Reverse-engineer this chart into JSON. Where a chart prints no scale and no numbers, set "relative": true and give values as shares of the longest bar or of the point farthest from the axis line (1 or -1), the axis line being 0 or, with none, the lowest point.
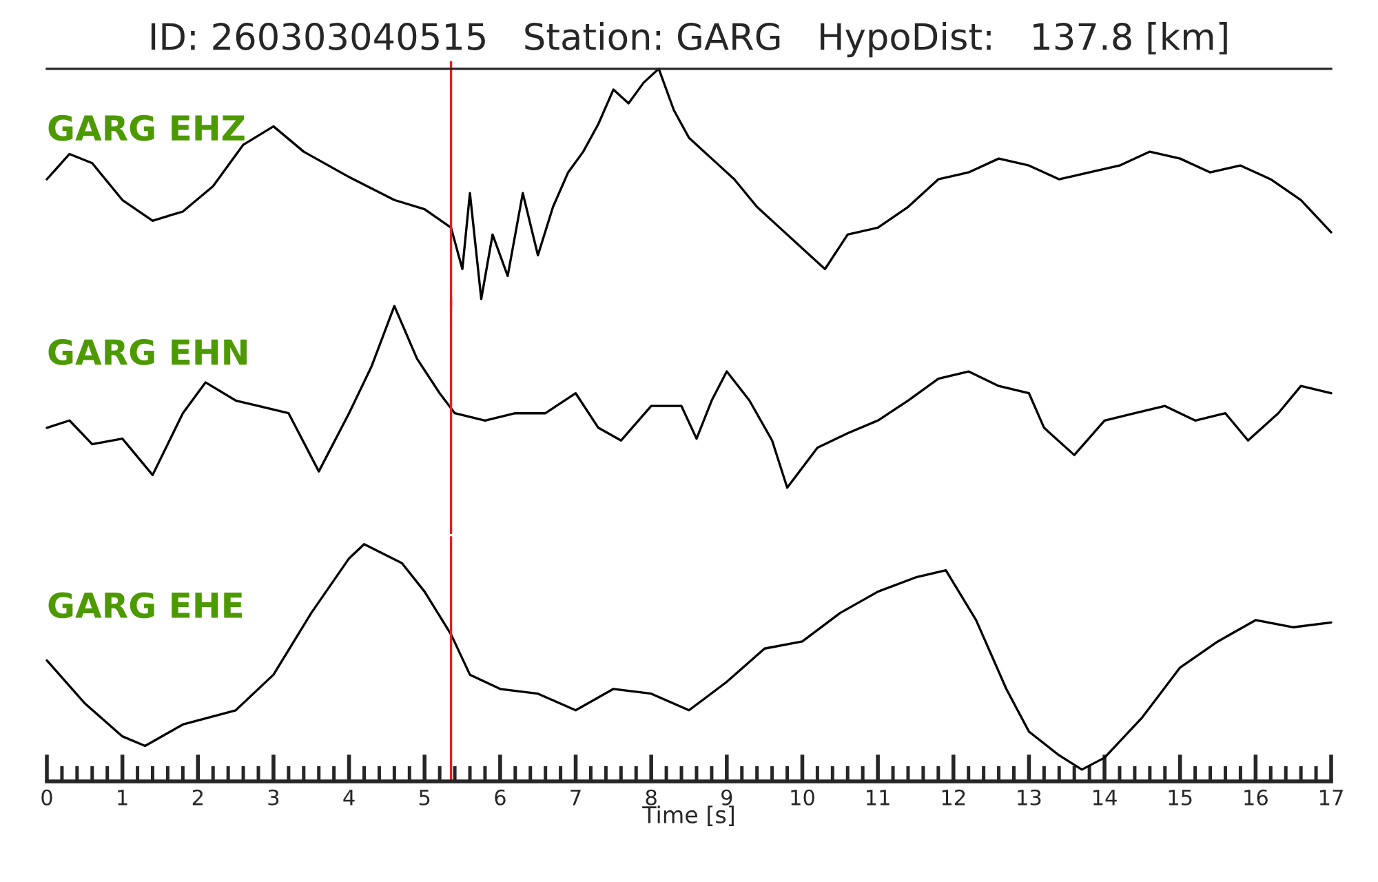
{
  "chart_data": [
    {
      "type": "line",
      "title": "ID: 260303040515   Station: GARG   HypoDist:   137.8 [km]",
      "relative": true,
      "xlim": [
        0,
        17
      ],
      "tick_labels": false,
      "x": [
        0,
        0.3,
        0.6,
        1.0,
        1.4,
        1.8,
        2.2,
        2.6,
        3.0,
        3.4,
        4.0,
        4.6,
        5.0,
        5.35,
        5.5,
        5.6,
        5.75,
        5.9,
        6.1,
        6.3,
        6.5,
        6.7,
        6.9,
        7.1,
        7.3,
        7.5,
        7.7,
        7.9,
        8.1,
        8.3,
        8.5,
        8.8,
        9.1,
        9.4,
        9.7,
        10.0,
        10.3,
        10.6,
        11.0,
        11.4,
        11.8,
        12.2,
        12.6,
        13.0,
        13.4,
        13.8,
        14.2,
        14.6,
        15.0,
        15.4,
        15.8,
        16.2,
        16.6,
        17.0
      ],
      "series": [
        {
          "name": "GARG EHZ",
          "color": "#000000",
          "values": [
            0.52,
            0.63,
            0.59,
            0.43,
            0.34,
            0.38,
            0.49,
            0.67,
            0.75,
            0.64,
            0.53,
            0.43,
            0.39,
            0.31,
            0.13,
            0.46,
            0,
            0.28,
            0.1,
            0.46,
            0.19,
            0.4,
            0.55,
            0.64,
            0.76,
            0.91,
            0.85,
            0.94,
            1,
            0.82,
            0.7,
            0.61,
            0.52,
            0.4,
            0.31,
            0.22,
            0.13,
            0.28,
            0.31,
            0.4,
            0.52,
            0.55,
            0.61,
            0.58,
            0.52,
            0.55,
            0.58,
            0.64,
            0.61,
            0.55,
            0.58,
            0.52,
            0.43,
            0.29
          ]
        }
      ],
      "ref_lines": [
        {
          "axis": "x",
          "value": 5.35,
          "color": "#e0201f"
        }
      ]
    },
    {
      "type": "line",
      "relative": true,
      "xlim": [
        0,
        17
      ],
      "tick_labels": false,
      "x": [
        0,
        0.3,
        0.6,
        1.0,
        1.4,
        1.8,
        2.1,
        2.5,
        2.8,
        3.2,
        3.6,
        4.0,
        4.3,
        4.6,
        4.9,
        5.2,
        5.4,
        5.8,
        6.2,
        6.6,
        7.0,
        7.3,
        7.6,
        8.0,
        8.4,
        8.6,
        8.8,
        9.0,
        9.3,
        9.6,
        9.8,
        10.2,
        10.6,
        11.0,
        11.4,
        11.8,
        12.2,
        12.6,
        13.0,
        13.2,
        13.6,
        14.0,
        14.4,
        14.8,
        15.2,
        15.6,
        15.9,
        16.3,
        16.6,
        17.0
      ],
      "series": [
        {
          "name": "GARG EHN",
          "color": "#000000",
          "values": [
            0.33,
            0.37,
            0.24,
            0.27,
            0.07,
            0.41,
            0.58,
            0.48,
            0.45,
            0.41,
            0.09,
            0.41,
            0.67,
            1,
            0.71,
            0.52,
            0.41,
            0.37,
            0.41,
            0.41,
            0.52,
            0.33,
            0.26,
            0.45,
            0.45,
            0.27,
            0.48,
            0.64,
            0.48,
            0.26,
            0,
            0.22,
            0.3,
            0.37,
            0.48,
            0.6,
            0.64,
            0.56,
            0.52,
            0.33,
            0.18,
            0.37,
            0.41,
            0.45,
            0.37,
            0.41,
            0.26,
            0.41,
            0.56,
            0.52
          ]
        }
      ],
      "ref_lines": [
        {
          "axis": "x",
          "value": 5.35,
          "color": "#e0201f"
        }
      ]
    },
    {
      "type": "line",
      "relative": true,
      "xlim": [
        0,
        17
      ],
      "tick_labels": "x",
      "xlabel": "Time [s]",
      "xticks": [
        0,
        {
          "value": 0.2,
          "label": null
        },
        {
          "value": 0.4,
          "label": null
        },
        {
          "value": 0.6,
          "label": null
        },
        {
          "value": 0.8,
          "label": null
        },
        1,
        {
          "value": 1.2,
          "label": null
        },
        {
          "value": 1.4,
          "label": null
        },
        {
          "value": 1.6,
          "label": null
        },
        {
          "value": 1.8,
          "label": null
        },
        2,
        {
          "value": 2.2,
          "label": null
        },
        {
          "value": 2.4,
          "label": null
        },
        {
          "value": 2.6,
          "label": null
        },
        {
          "value": 2.8,
          "label": null
        },
        3,
        {
          "value": 3.2,
          "label": null
        },
        {
          "value": 3.4,
          "label": null
        },
        {
          "value": 3.6,
          "label": null
        },
        {
          "value": 3.8,
          "label": null
        },
        4,
        {
          "value": 4.2,
          "label": null
        },
        {
          "value": 4.4,
          "label": null
        },
        {
          "value": 4.6,
          "label": null
        },
        {
          "value": 4.8,
          "label": null
        },
        5,
        {
          "value": 5.2,
          "label": null
        },
        {
          "value": 5.4,
          "label": null
        },
        {
          "value": 5.6,
          "label": null
        },
        {
          "value": 5.8,
          "label": null
        },
        6,
        {
          "value": 6.2,
          "label": null
        },
        {
          "value": 6.4,
          "label": null
        },
        {
          "value": 6.6,
          "label": null
        },
        {
          "value": 6.8,
          "label": null
        },
        7,
        {
          "value": 7.2,
          "label": null
        },
        {
          "value": 7.4,
          "label": null
        },
        {
          "value": 7.6,
          "label": null
        },
        {
          "value": 7.8,
          "label": null
        },
        8,
        {
          "value": 8.2,
          "label": null
        },
        {
          "value": 8.4,
          "label": null
        },
        {
          "value": 8.6,
          "label": null
        },
        {
          "value": 8.8,
          "label": null
        },
        9,
        {
          "value": 9.2,
          "label": null
        },
        {
          "value": 9.4,
          "label": null
        },
        {
          "value": 9.6,
          "label": null
        },
        {
          "value": 9.8,
          "label": null
        },
        10,
        {
          "value": 10.2,
          "label": null
        },
        {
          "value": 10.4,
          "label": null
        },
        {
          "value": 10.6,
          "label": null
        },
        {
          "value": 10.8,
          "label": null
        },
        11,
        {
          "value": 11.2,
          "label": null
        },
        {
          "value": 11.4,
          "label": null
        },
        {
          "value": 11.6,
          "label": null
        },
        {
          "value": 11.8,
          "label": null
        },
        12,
        {
          "value": 12.2,
          "label": null
        },
        {
          "value": 12.4,
          "label": null
        },
        {
          "value": 12.6,
          "label": null
        },
        {
          "value": 12.8,
          "label": null
        },
        13,
        {
          "value": 13.2,
          "label": null
        },
        {
          "value": 13.4,
          "label": null
        },
        {
          "value": 13.6,
          "label": null
        },
        {
          "value": 13.8,
          "label": null
        },
        14,
        {
          "value": 14.2,
          "label": null
        },
        {
          "value": 14.4,
          "label": null
        },
        {
          "value": 14.6,
          "label": null
        },
        {
          "value": 14.8,
          "label": null
        },
        15,
        {
          "value": 15.2,
          "label": null
        },
        {
          "value": 15.4,
          "label": null
        },
        {
          "value": 15.6,
          "label": null
        },
        {
          "value": 15.8,
          "label": null
        },
        16,
        {
          "value": 16.2,
          "label": null
        },
        {
          "value": 16.4,
          "label": null
        },
        {
          "value": 16.6,
          "label": null
        },
        {
          "value": 16.8,
          "label": null
        },
        17
      ],
      "x": [
        0,
        0.5,
        1.0,
        1.3,
        1.8,
        2.5,
        3.0,
        3.5,
        4.0,
        4.2,
        4.7,
        5.0,
        5.35,
        5.6,
        6.0,
        6.5,
        7.0,
        7.5,
        8.0,
        8.5,
        9.0,
        9.5,
        10.0,
        10.5,
        11.0,
        11.5,
        11.9,
        12.3,
        12.7,
        13.0,
        13.4,
        13.7,
        14.0,
        14.5,
        15.0,
        15.5,
        16.0,
        16.5,
        17.0
      ],
      "series": [
        {
          "name": "GARG EHE",
          "color": "#000000",
          "values": [
            0.51,
            0.33,
            0.19,
            0.15,
            0.24,
            0.3,
            0.45,
            0.71,
            0.94,
            1,
            0.92,
            0.8,
            0.62,
            0.45,
            0.39,
            0.37,
            0.3,
            0.39,
            0.37,
            0.3,
            0.42,
            0.56,
            0.59,
            0.71,
            0.8,
            0.86,
            0.89,
            0.68,
            0.39,
            0.21,
            0.11,
            0.05,
            0.1,
            0.27,
            0.48,
            0.59,
            0.68,
            0.65,
            0.67
          ]
        }
      ],
      "ref_lines": [
        {
          "axis": "x",
          "value": 5.35,
          "color": "#e0201f"
        }
      ]
    }
  ]
}
